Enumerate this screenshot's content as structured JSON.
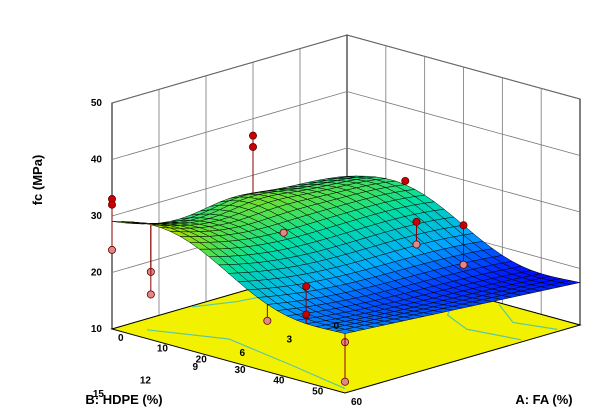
{
  "chart_data": {
    "type": "surface3d",
    "zlabel": "fc (MPa)",
    "xlabel": "A: FA (%)",
    "ylabel": "B: HDPE (%)",
    "x_ticks": [
      "0",
      "10",
      "20",
      "30",
      "40",
      "50",
      "60"
    ],
    "y_ticks": [
      "0",
      "3",
      "6",
      "9",
      "12",
      "15"
    ],
    "z_ticks": [
      "10",
      "20",
      "30",
      "40",
      "50"
    ],
    "xlim": [
      0,
      60
    ],
    "ylim": [
      0,
      15
    ],
    "zlim": [
      10,
      50
    ],
    "grid": true,
    "design_points": [
      {
        "fa": 0,
        "hdpe": 15,
        "fc": 33
      },
      {
        "fa": 0,
        "hdpe": 15,
        "fc": 32
      },
      {
        "fa": 0,
        "hdpe": 15,
        "fc": 24
      },
      {
        "fa": 0,
        "hdpe": 6,
        "fc": 37
      },
      {
        "fa": 0,
        "hdpe": 6,
        "fc": 35
      },
      {
        "fa": 15,
        "hdpe": 0,
        "fc": 27
      },
      {
        "fa": 10,
        "hdpe": 15,
        "fc": 22
      },
      {
        "fa": 10,
        "hdpe": 15,
        "fc": 18
      },
      {
        "fa": 20,
        "hdpe": 9,
        "fc": 26
      },
      {
        "fa": 30,
        "hdpe": 0,
        "fc": 22
      },
      {
        "fa": 30,
        "hdpe": 0,
        "fc": 15
      },
      {
        "fa": 30,
        "hdpe": 3,
        "fc": 25
      },
      {
        "fa": 30,
        "hdpe": 3,
        "fc": 21
      },
      {
        "fa": 40,
        "hdpe": 15,
        "fc": 19
      },
      {
        "fa": 50,
        "hdpe": 15,
        "fc": 27
      },
      {
        "fa": 50,
        "hdpe": 15,
        "fc": 22
      },
      {
        "fa": 60,
        "hdpe": 15,
        "fc": 19
      },
      {
        "fa": 60,
        "hdpe": 15,
        "fc": 12
      }
    ],
    "surface_colors": [
      "#0000ff",
      "#00aaff",
      "#00e0a0",
      "#a0e000",
      "#ffff00"
    ],
    "floor_color": "#f2f200",
    "contour_color": "#5fc7a0",
    "point_color": "#c80000"
  }
}
